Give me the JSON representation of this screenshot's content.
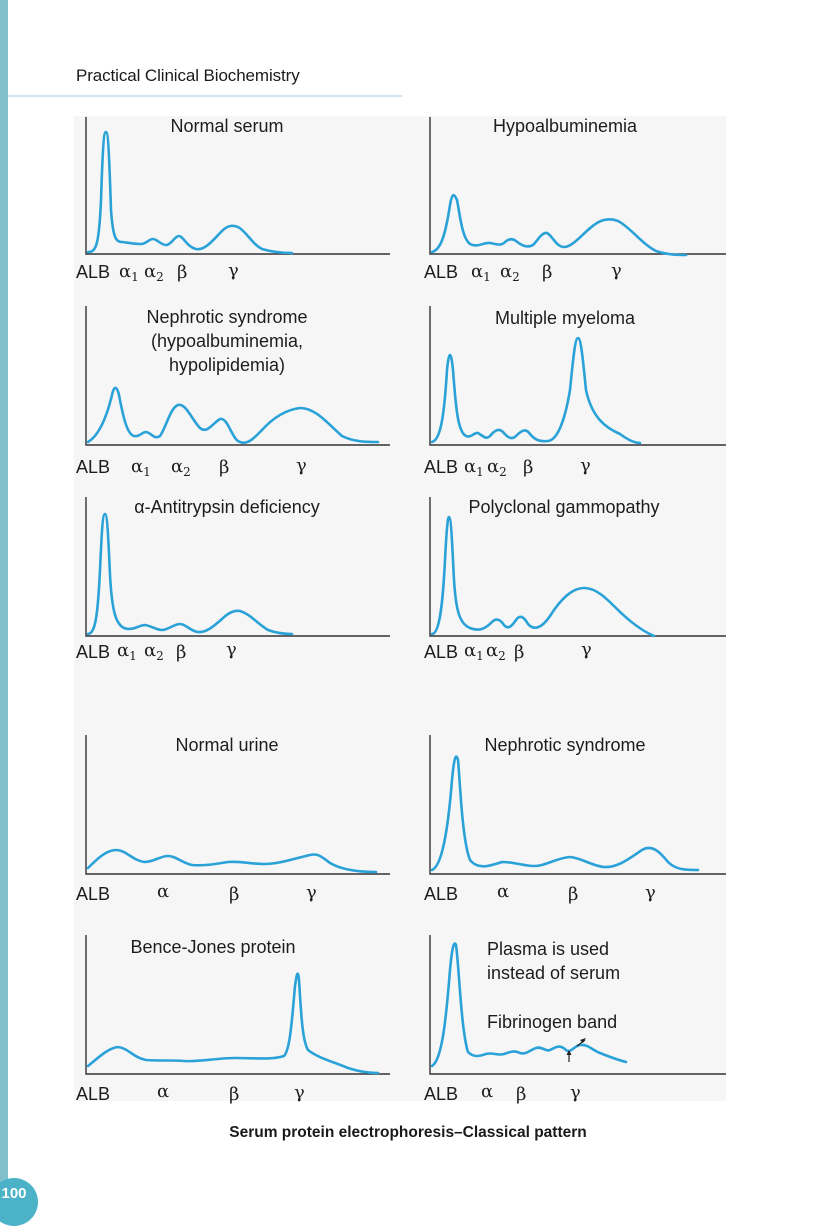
{
  "running_head": "Practical Clinical Biochemistry",
  "caption": "Serum protein electrophoresis–Classical pattern",
  "page_number": "100",
  "panels": [
    {
      "title_lines": [
        "Normal serum"
      ],
      "labels": [
        "ALB",
        "α1",
        "α2",
        "β",
        "γ"
      ]
    },
    {
      "title_lines": [
        "Hypoalbuminemia"
      ],
      "labels": [
        "ALB",
        "α1",
        "α2",
        "β",
        "γ"
      ]
    },
    {
      "title_lines": [
        "Nephrotic syndrome",
        "(hypoalbuminemia,",
        "hypolipidemia)"
      ],
      "labels": [
        "ALB",
        "α1",
        "α2",
        "β",
        "γ"
      ]
    },
    {
      "title_lines": [
        "Multiple myeloma"
      ],
      "labels": [
        "ALB",
        "α1",
        "α2",
        "β",
        "γ"
      ]
    },
    {
      "title_lines": [
        "α-Antitrypsin deficiency"
      ],
      "labels": [
        "ALB",
        "α1",
        "α2",
        "β",
        "γ"
      ]
    },
    {
      "title_lines": [
        "Polyclonal gammopathy"
      ],
      "labels": [
        "ALB",
        "α1",
        "α2",
        "β",
        "γ"
      ]
    },
    {
      "title_lines": [
        "Normal urine"
      ],
      "labels": [
        "ALB",
        "α",
        "β",
        "γ"
      ]
    },
    {
      "title_lines": [
        "Nephrotic syndrome"
      ],
      "labels": [
        "ALB",
        "α",
        "β",
        "γ"
      ]
    },
    {
      "title_lines": [
        "Bence-Jones protein"
      ],
      "labels": [
        "ALB",
        "α",
        "β",
        "γ"
      ]
    },
    {
      "title_lines": [
        "Plasma is used",
        "instead of serum"
      ],
      "note": "Fibrinogen band",
      "labels": [
        "ALB",
        "α",
        "β",
        "γ"
      ]
    }
  ],
  "colors": {
    "curve": "#2aa2d8",
    "accent": "#4cb2c7"
  }
}
